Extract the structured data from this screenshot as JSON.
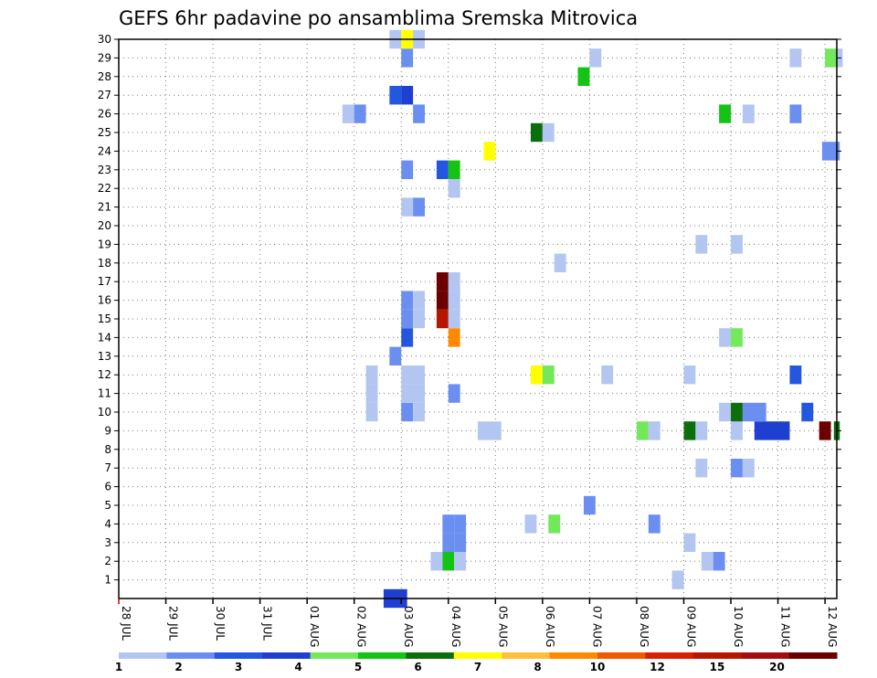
{
  "chart_data": {
    "type": "heatmap",
    "title": "GEFS 6hr padavine po ansamblima Sremska Mitrovica",
    "xlabel": "",
    "ylabel": "",
    "x_tick_labels": [
      "28 JUL",
      "29 JUL",
      "30 JUL",
      "31 JUL",
      "01 AUG",
      "02 AUG",
      "03 AUG",
      "04 AUG",
      "05 AUG",
      "06 AUG",
      "07 AUG",
      "08 AUG",
      "09 AUG",
      "10 AUG",
      "11 AUG",
      "12 AUG"
    ],
    "x_range_steps": [
      0,
      61
    ],
    "y_tick_labels": [
      "1",
      "2",
      "3",
      "4",
      "5",
      "6",
      "7",
      "8",
      "9",
      "10",
      "11",
      "12",
      "13",
      "14",
      "15",
      "16",
      "17",
      "18",
      "19",
      "20",
      "21",
      "22",
      "23",
      "24",
      "25",
      "26",
      "27",
      "28",
      "29",
      "30"
    ],
    "y_range": [
      0,
      30
    ],
    "grid": true,
    "legend_placement": "bottom",
    "color_bins": [
      {
        "color": "#b3c6f2"
      },
      {
        "color": "#6b8ff0"
      },
      {
        "color": "#2457e0"
      },
      {
        "color": "#1f3fd0"
      },
      {
        "color": "#73e85a"
      },
      {
        "color": "#14c414"
      },
      {
        "color": "#0c6e0c"
      },
      {
        "color": "#ffff00"
      },
      {
        "color": "#ffbf3a"
      },
      {
        "color": "#ff8a00"
      },
      {
        "color": "#ee5a00"
      },
      {
        "color": "#d42300"
      },
      {
        "color": "#b51800"
      },
      {
        "color": "#a20e0e"
      },
      {
        "color": "#6b0000"
      }
    ],
    "legend_labels": [
      {
        "label": "1",
        "pos": 0
      },
      {
        "label": "2",
        "pos": 1
      },
      {
        "label": "3",
        "pos": 2
      },
      {
        "label": "4",
        "pos": 3
      },
      {
        "label": "5",
        "pos": 4
      },
      {
        "label": "6",
        "pos": 5
      },
      {
        "label": "7",
        "pos": 6
      },
      {
        "label": "8",
        "pos": 7
      },
      {
        "label": "10",
        "pos": 8
      },
      {
        "label": "12",
        "pos": 9
      },
      {
        "label": "15",
        "pos": 10
      },
      {
        "label": "20",
        "pos": 11
      }
    ],
    "cells": [
      {
        "x": 23.5,
        "y": 0,
        "w": 2,
        "bin": 3
      },
      {
        "x": 47.5,
        "y": 1,
        "bin": 0
      },
      {
        "x": 27,
        "y": 2,
        "bin": 0
      },
      {
        "x": 28,
        "y": 2,
        "bin": 5
      },
      {
        "x": 29,
        "y": 2,
        "bin": 0
      },
      {
        "x": 50,
        "y": 2,
        "bin": 0
      },
      {
        "x": 51,
        "y": 2,
        "bin": 1
      },
      {
        "x": 28,
        "y": 3,
        "bin": 1
      },
      {
        "x": 29,
        "y": 3,
        "bin": 1
      },
      {
        "x": 48.5,
        "y": 3,
        "bin": 0
      },
      {
        "x": 28,
        "y": 4,
        "bin": 1
      },
      {
        "x": 29,
        "y": 4,
        "bin": 1
      },
      {
        "x": 35,
        "y": 4,
        "bin": 0
      },
      {
        "x": 37,
        "y": 4,
        "bin": 4
      },
      {
        "x": 45.5,
        "y": 4,
        "bin": 1
      },
      {
        "x": 40,
        "y": 5,
        "bin": 1
      },
      {
        "x": 49.5,
        "y": 7,
        "bin": 0
      },
      {
        "x": 52.5,
        "y": 7,
        "bin": 1
      },
      {
        "x": 53.5,
        "y": 7,
        "bin": 0
      },
      {
        "x": 31.5,
        "y": 9,
        "w": 2,
        "bin": 0
      },
      {
        "x": 44.5,
        "y": 9,
        "bin": 4
      },
      {
        "x": 45.5,
        "y": 9,
        "bin": 0
      },
      {
        "x": 48.5,
        "y": 9,
        "bin": 6
      },
      {
        "x": 49.5,
        "y": 9,
        "bin": 0
      },
      {
        "x": 52.5,
        "y": 9,
        "bin": 0
      },
      {
        "x": 55.5,
        "y": 9,
        "w": 3,
        "bin": 3
      },
      {
        "x": 60,
        "y": 9,
        "bin": 14
      },
      {
        "x": 61,
        "y": 9,
        "w": 0.5,
        "bin": 6
      },
      {
        "x": 21.5,
        "y": 10,
        "bin": 0
      },
      {
        "x": 24.5,
        "y": 10,
        "bin": 1
      },
      {
        "x": 25.5,
        "y": 10,
        "bin": 0
      },
      {
        "x": 51.5,
        "y": 10,
        "bin": 0
      },
      {
        "x": 52.5,
        "y": 10,
        "bin": 6
      },
      {
        "x": 54,
        "y": 10,
        "w": 2,
        "bin": 1
      },
      {
        "x": 58.5,
        "y": 10,
        "bin": 2
      },
      {
        "x": 21.5,
        "y": 11,
        "bin": 0
      },
      {
        "x": 25,
        "y": 11,
        "w": 2,
        "bin": 0
      },
      {
        "x": 28.5,
        "y": 11,
        "bin": 1
      },
      {
        "x": 21.5,
        "y": 12,
        "bin": 0
      },
      {
        "x": 25,
        "y": 12,
        "w": 2,
        "bin": 0
      },
      {
        "x": 35.5,
        "y": 12,
        "bin": 7
      },
      {
        "x": 36.5,
        "y": 12,
        "bin": 4
      },
      {
        "x": 41.5,
        "y": 12,
        "bin": 0
      },
      {
        "x": 48.5,
        "y": 12,
        "bin": 0
      },
      {
        "x": 57.5,
        "y": 12,
        "bin": 2
      },
      {
        "x": 23.5,
        "y": 13,
        "bin": 1
      },
      {
        "x": 24.5,
        "y": 14,
        "bin": 2
      },
      {
        "x": 28.5,
        "y": 14,
        "bin": 9
      },
      {
        "x": 51.5,
        "y": 14,
        "bin": 0
      },
      {
        "x": 52.5,
        "y": 14,
        "bin": 4
      },
      {
        "x": 24.5,
        "y": 15,
        "bin": 1
      },
      {
        "x": 25.5,
        "y": 15,
        "bin": 0
      },
      {
        "x": 27.5,
        "y": 15,
        "bin": 12
      },
      {
        "x": 28.5,
        "y": 15,
        "bin": 0
      },
      {
        "x": 24.5,
        "y": 16,
        "bin": 1
      },
      {
        "x": 25.5,
        "y": 16,
        "bin": 0
      },
      {
        "x": 27.5,
        "y": 16,
        "bin": 14
      },
      {
        "x": 28.5,
        "y": 16,
        "bin": 0
      },
      {
        "x": 27.5,
        "y": 17,
        "bin": 14
      },
      {
        "x": 28.5,
        "y": 17,
        "bin": 0
      },
      {
        "x": 37.5,
        "y": 18,
        "bin": 0
      },
      {
        "x": 49.5,
        "y": 19,
        "bin": 0
      },
      {
        "x": 52.5,
        "y": 19,
        "bin": 0
      },
      {
        "x": 24.5,
        "y": 21,
        "bin": 0
      },
      {
        "x": 25.5,
        "y": 21,
        "bin": 1
      },
      {
        "x": 28.5,
        "y": 22,
        "bin": 0
      },
      {
        "x": 24.5,
        "y": 23,
        "bin": 1
      },
      {
        "x": 27.5,
        "y": 23,
        "bin": 2
      },
      {
        "x": 28.5,
        "y": 23,
        "bin": 5
      },
      {
        "x": 31.5,
        "y": 24,
        "bin": 7
      },
      {
        "x": 60.5,
        "y": 24,
        "w": 1.5,
        "bin": 1
      },
      {
        "x": 35.5,
        "y": 25,
        "bin": 6
      },
      {
        "x": 36.5,
        "y": 25,
        "bin": 0
      },
      {
        "x": 19.5,
        "y": 26,
        "bin": 0
      },
      {
        "x": 20.5,
        "y": 26,
        "bin": 1
      },
      {
        "x": 25.5,
        "y": 26,
        "bin": 1
      },
      {
        "x": 51.5,
        "y": 26,
        "bin": 5
      },
      {
        "x": 53.5,
        "y": 26,
        "bin": 0
      },
      {
        "x": 57.5,
        "y": 26,
        "bin": 1
      },
      {
        "x": 23.5,
        "y": 27,
        "bin": 2
      },
      {
        "x": 24.5,
        "y": 27,
        "bin": 3
      },
      {
        "x": 39.5,
        "y": 28,
        "bin": 5
      },
      {
        "x": 40.5,
        "y": 29,
        "bin": 0
      },
      {
        "x": 24.5,
        "y": 29,
        "bin": 1
      },
      {
        "x": 57.5,
        "y": 29,
        "bin": 0
      },
      {
        "x": 60.5,
        "y": 29,
        "bin": 4
      },
      {
        "x": 61.25,
        "y": 29,
        "w": 0.5,
        "bin": 0
      },
      {
        "x": 23.5,
        "y": 30,
        "bin": 0
      },
      {
        "x": 24.5,
        "y": 30,
        "bin": 7
      },
      {
        "x": 25.5,
        "y": 30,
        "bin": 0
      }
    ]
  }
}
